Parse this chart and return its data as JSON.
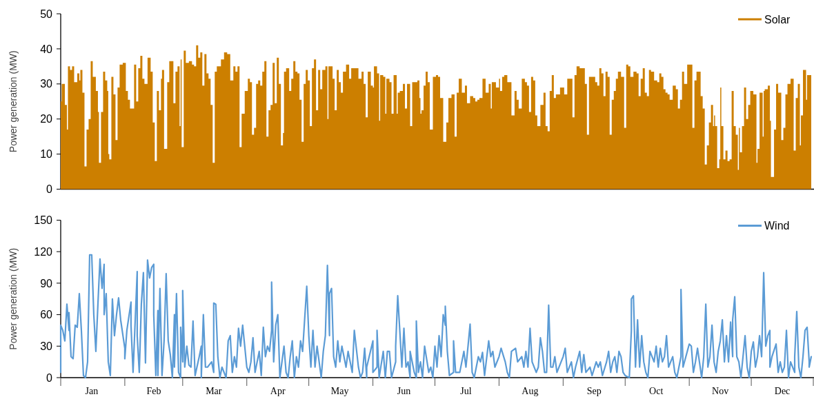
{
  "chart_data": [
    {
      "type": "area",
      "ylabel": "Power generation (MW)",
      "xlim": [
        "--01-01",
        "--12-31"
      ],
      "ylim": [
        0,
        50
      ],
      "yticks": [
        0,
        10,
        20,
        30,
        40,
        50
      ],
      "legend": "top right",
      "tick_labels": "y",
      "series": [
        {
          "name": "Solar",
          "color": "#cc7f00",
          "x": [
            "--01-01",
            "--01-01",
            "--01-02",
            "--01-04",
            "--01-04",
            "--01-05",
            "--01-06",
            "--01-07",
            "--01-08",
            "--01-10",
            "--01-10",
            "--01-11",
            "--01-12",
            "--01-13",
            "--01-14",
            "--01-15",
            "--01-16",
            "--01-17",
            "--01-19",
            "--01-19",
            "--01-20",
            "--01-21",
            "--01-22",
            "--01-23",
            "--01-24",
            "--01-24",
            "--01-25",
            "--01-26",
            "--01-27",
            "--01-28",
            "--01-29",
            "--01-30",
            "--02-01",
            "--02-02",
            "--02-03",
            "--02-04",
            "--02-05",
            "--02-06",
            "--02-07",
            "--02-08",
            "--02-09",
            "--02-10",
            "--02-11",
            "--02-13",
            "--02-13",
            "--02-14",
            "--02-15",
            "--02-16",
            "--02-17",
            "--02-18",
            "--02-19",
            "--02-19",
            "--02-21",
            "--02-22",
            "--02-23",
            "--02-24",
            "--02-25",
            "--02-26",
            "--02-27",
            "--02-28",
            "--02-28",
            "--02-28",
            "--03-01",
            "--03-02",
            "--03-03",
            "--03-05",
            "--03-06",
            "--03-07",
            "--03-08",
            "--03-09",
            "--03-10",
            "--03-11",
            "--03-12",
            "--03-13",
            "--03-14",
            "--03-15",
            "--03-16",
            "--03-17",
            "--03-18",
            "--03-19",
            "--03-20",
            "--03-22",
            "--03-23",
            "--03-25",
            "--03-26",
            "--03-27",
            "--03-28",
            "--03-29",
            "--03-30",
            "--04-01",
            "--04-02",
            "--04-03",
            "--04-04",
            "--04-05",
            "--04-06",
            "--04-07",
            "--04-08",
            "--04-09",
            "--04-10",
            "--04-11",
            "--04-12",
            "--04-13",
            "--04-14",
            "--04-15",
            "--04-16",
            "--04-17",
            "--04-18",
            "--04-19",
            "--04-19",
            "--04-21",
            "--04-22",
            "--04-23",
            "--04-24",
            "--04-25",
            "--04-26",
            "--04-27",
            "--04-28",
            "--04-29",
            "--04-30",
            "--05-01",
            "--05-02",
            "--05-03",
            "--05-04",
            "--05-05",
            "--05-06",
            "--05-07",
            "--05-08",
            "--05-10",
            "--05-10",
            "--05-11",
            "--05-12",
            "--05-13",
            "--05-14",
            "--05-15",
            "--05-16",
            "--05-17",
            "--05-18",
            "--05-20",
            "--05-21",
            "--05-22",
            "--05-24",
            "--05-26",
            "--05-27",
            "--05-28",
            "--05-29",
            "--05-30",
            "--06-01",
            "--06-01",
            "--06-02",
            "--06-04",
            "--06-04",
            "--06-05",
            "--06-07",
            "--06-07",
            "--06-08",
            "--06-10",
            "--06-10",
            "--06-12",
            "--06-13",
            "--06-13",
            "--06-15",
            "--06-16",
            "--06-17",
            "--06-18",
            "--06-19",
            "--06-19",
            "--06-21",
            "--06-22",
            "--06-23",
            "--06-24",
            "--06-24",
            "--06-25",
            "--06-26",
            "--06-27",
            "--06-28",
            "--06-29",
            "--07-01",
            "--07-02",
            "--07-03",
            "--07-04",
            "--07-06",
            "--07-07",
            "--07-08",
            "--07-10",
            "--07-11",
            "--07-12",
            "--07-13",
            "--07-15",
            "--07-16",
            "--07-17",
            "--07-19",
            "--07-20",
            "--07-21",
            "--07-22",
            "--07-23",
            "--07-25",
            "--07-26",
            "--07-28",
            "--07-28",
            "--07-29",
            "--08-01",
            "--08-01",
            "--08-02",
            "--08-03",
            "--08-04",
            "--08-06",
            "--08-08",
            "--08-09",
            "--08-10",
            "--08-11",
            "--08-13",
            "--08-14",
            "--08-15",
            "--08-16",
            "--08-17",
            "--08-18",
            "--08-19",
            "--08-20",
            "--08-22",
            "--08-23",
            "--08-24",
            "--08-25",
            "--08-26",
            "--08-27",
            "--08-28",
            "--08-29",
            "--09-01",
            "--09-02",
            "--09-04",
            "--09-05",
            "--09-06",
            "--09-07",
            "--09-08",
            "--09-10",
            "--09-11",
            "--09-12",
            "--09-13",
            "--09-14",
            "--09-16",
            "--09-17",
            "--09-18",
            "--09-19",
            "--09-20",
            "--09-21",
            "--09-22",
            "--09-23",
            "--09-24",
            "--09-25",
            "--09-26",
            "--09-27",
            "--09-28",
            "--09-30",
            "--10-01",
            "--10-02",
            "--10-03",
            "--10-04",
            "--10-06",
            "--10-07",
            "--10-08",
            "--10-09",
            "--10-10",
            "--10-11",
            "--10-12",
            "--10-13",
            "--10-14",
            "--10-16",
            "--10-17",
            "--10-18",
            "--10-19",
            "--10-20",
            "--10-21",
            "--10-22",
            "--10-23",
            "--10-25",
            "--10-26",
            "--10-27",
            "--10-28",
            "--10-29",
            "--10-30",
            "--11-01",
            "--11-02",
            "--11-03",
            "--11-04",
            "--11-05",
            "--11-06",
            "--11-07",
            "--11-08",
            "--11-09",
            "--11-10",
            "--11-11",
            "--11-12",
            "--11-13",
            "--11-13",
            "--11-14",
            "--11-15",
            "--11-16",
            "--11-16",
            "--11-17",
            "--11-18",
            "--11-19",
            "--11-20",
            "--11-21",
            "--11-22",
            "--11-23",
            "--11-24",
            "--11-25",
            "--11-25",
            "--11-26",
            "--11-27",
            "--11-28",
            "--11-29",
            "--11-30",
            "--12-01",
            "--12-03",
            "--12-04",
            "--12-04",
            "--12-06",
            "--12-07",
            "--12-07",
            "--12-08",
            "--12-10",
            "--12-10",
            "--12-11",
            "--12-13",
            "--12-13",
            "--12-15",
            "--12-16",
            "--12-17",
            "--12-18",
            "--12-19",
            "--12-21",
            "--12-22",
            "--12-23",
            "--12-24",
            "--12-25",
            "--12-25",
            "--12-27",
            "--12-28",
            "--12-28",
            "--12-30"
          ],
          "values": [
            30,
            25,
            30,
            24,
            17,
            35,
            34,
            35,
            30.5,
            33,
            31,
            34,
            27.5,
            6.5,
            17,
            20,
            36.5,
            32,
            28,
            22,
            7.5,
            22,
            33.5,
            31,
            28,
            10,
            8.5,
            32,
            27,
            14,
            29,
            35.5,
            36,
            28,
            25.5,
            23,
            23,
            35.5,
            25,
            34.5,
            38,
            31.5,
            30,
            37.5,
            37.5,
            33.5,
            19,
            8,
            28,
            22.5,
            31.5,
            34,
            11.5,
            30.5,
            36.5,
            36.5,
            24.5,
            33.5,
            35,
            18,
            35,
            37,
            12,
            39.5,
            36,
            36.5,
            35.5,
            35,
            41,
            37.5,
            39,
            29.5,
            38.5,
            33,
            31.5,
            24,
            7.5,
            33.5,
            35,
            35,
            37,
            39,
            38.5,
            31,
            35,
            33.5,
            35,
            12,
            21.5,
            28,
            31.5,
            30.5,
            15.5,
            17.5,
            30,
            31,
            29.5,
            33.5,
            36.5,
            15,
            22.5,
            24,
            36,
            24.5,
            37.5,
            30,
            12.5,
            16,
            33.5,
            34.5,
            28,
            31.5,
            36.5,
            33.5,
            33,
            25.5,
            13.5,
            30,
            34,
            31,
            18,
            34.5,
            37,
            22.5,
            34,
            28.5,
            34,
            35,
            20,
            35,
            35,
            31.5,
            22.5,
            34,
            30.5,
            27.5,
            33.5,
            35.5,
            31.5,
            34.5,
            34.5,
            31.5,
            33.5,
            30,
            20.5,
            33.5,
            29.5,
            29,
            35,
            33,
            19.5,
            32.5,
            32,
            21.5,
            31.5,
            30.5,
            21.5,
            32.5,
            21.5,
            27.5,
            28,
            30,
            23,
            30,
            30,
            18,
            30.5,
            30.5,
            31,
            26,
            21.5,
            22.5,
            29.5,
            33.5,
            30.5,
            17,
            32,
            32.5,
            32,
            26,
            13.5,
            19,
            26,
            27,
            15,
            27.5,
            31.5,
            27.5,
            29.5,
            24.5,
            26.5,
            26,
            25,
            25.5,
            26,
            31.5,
            27.5,
            30,
            23,
            30.5,
            29,
            31.5,
            28,
            32,
            32.5,
            30.5,
            21,
            28,
            25.5,
            23,
            31.5,
            30.5,
            29.5,
            22,
            32,
            31,
            21,
            18,
            24,
            27.5,
            18,
            16.5,
            28,
            32.5,
            26,
            27,
            29,
            27,
            31.5,
            31.5,
            20.5,
            32.5,
            35,
            34.5,
            34.5,
            30,
            15.5,
            32,
            32,
            30.5,
            29.5,
            34.5,
            33,
            26.5,
            33.5,
            32,
            15.5,
            25.5,
            28,
            31.5,
            33.5,
            32,
            17.5,
            35.5,
            35,
            32,
            33.5,
            33,
            26.5,
            31.5,
            34.5,
            27.5,
            26.5,
            34,
            33.5,
            31,
            30.5,
            33,
            32,
            28.5,
            27.5,
            27,
            25.5,
            29.5,
            28.5,
            23,
            25.5,
            33.5,
            30,
            35.5,
            35.5,
            17.5,
            31,
            33.5,
            33.5,
            26.5,
            23,
            7,
            12.5,
            19,
            24,
            18,
            21,
            18,
            6,
            8.5,
            29,
            18,
            8.5,
            11,
            8,
            8.5,
            28,
            18,
            15.5,
            5.5,
            17.5,
            10.5,
            18,
            29,
            20,
            24,
            28,
            27,
            7.5,
            11.5,
            27.5,
            15,
            28,
            28.5,
            29.5,
            19.5,
            3.5,
            17,
            30,
            27.5,
            14,
            17.5,
            27,
            30,
            31.5,
            11,
            26,
            30,
            12.5,
            21,
            34,
            25.5,
            32.5,
            32.5
          ]
        }
      ]
    },
    {
      "type": "line",
      "ylabel": "Power generation (MW)",
      "xlim": [
        "--01-01",
        "--12-31"
      ],
      "ylim": [
        0,
        150
      ],
      "yticks": [
        0,
        30,
        60,
        90,
        120,
        150
      ],
      "legend": "top right",
      "xticks": [
        {
          "value": "--01-01",
          "label": null
        },
        {
          "value": "--01-16",
          "label": "Jan"
        },
        {
          "value": "--02-01",
          "label": null
        },
        {
          "value": "--02-15",
          "label": "Feb"
        },
        {
          "value": "--03-01",
          "label": null
        },
        {
          "value": "--03-16",
          "label": "Mar"
        },
        {
          "value": "--04-01",
          "label": null
        },
        {
          "value": "--04-16",
          "label": "Apr"
        },
        {
          "value": "--05-01",
          "label": null
        },
        {
          "value": "--05-16",
          "label": "May"
        },
        {
          "value": "--06-01",
          "label": null
        },
        {
          "value": "--06-16",
          "label": "Jun"
        },
        {
          "value": "--07-01",
          "label": null
        },
        {
          "value": "--07-16",
          "label": "Jul"
        },
        {
          "value": "--08-01",
          "label": null
        },
        {
          "value": "--08-16",
          "label": "Aug"
        },
        {
          "value": "--09-01",
          "label": null
        },
        {
          "value": "--09-16",
          "label": "Sep"
        },
        {
          "value": "--10-01",
          "label": null
        },
        {
          "value": "--10-16",
          "label": "Oct"
        },
        {
          "value": "--11-01",
          "label": null
        },
        {
          "value": "--11-16",
          "label": "Nov"
        },
        {
          "value": "--12-01",
          "label": null
        },
        {
          "value": "--12-16",
          "label": "Dec"
        },
        {
          "value": "--12-31",
          "label": null
        }
      ],
      "series": [
        {
          "name": "Wind",
          "color": "#5b9bd5",
          "x": [
            "--01-01",
            "--01-01",
            "--01-01",
            "--01-01",
            "--01-02",
            "--01-03",
            "--01-04",
            "--01-05",
            "--01-05",
            "--01-06",
            "--01-07",
            "--01-08",
            "--01-09",
            "--01-10",
            "--01-11",
            "--01-12",
            "--01-13",
            "--01-14",
            "--01-15",
            "--01-16",
            "--01-17",
            "--01-18",
            "--01-19",
            "--01-20",
            "--01-21",
            "--01-22",
            "--01-22",
            "--01-23",
            "--01-24",
            "--01-25",
            "--01-26",
            "--01-27",
            "--01-28",
            "--01-29",
            "--01-30",
            "--02-01",
            "--02-01",
            "--02-02",
            "--02-04",
            "--02-04",
            "--02-05",
            "--02-07",
            "--02-07",
            "--02-08",
            "--02-09",
            "--02-10",
            "--02-11",
            "--02-12",
            "--02-13",
            "--02-14",
            "--02-15",
            "--02-15",
            "--02-16",
            "--02-17",
            "--02-17",
            "--02-18",
            "--02-19",
            "--02-20",
            "--02-21",
            "--02-22",
            "--02-23",
            "--02-24",
            "--02-25",
            "--02-25",
            "--02-26",
            "--02-27",
            "--02-28",
            "--02-28",
            "--03-01",
            "--03-01",
            "--03-02",
            "--03-03",
            "--03-04",
            "--03-05",
            "--03-06",
            "--03-07",
            "--03-09",
            "--03-10",
            "--03-10",
            "--03-11",
            "--03-12",
            "--03-13",
            "--03-15",
            "--03-16",
            "--03-16",
            "--03-17",
            "--03-18",
            "--03-19",
            "--03-20",
            "--03-22",
            "--03-23",
            "--03-24",
            "--03-25",
            "--03-26",
            "--03-27",
            "--03-28",
            "--03-29",
            "--03-30",
            "--04-01",
            "--04-02",
            "--04-03",
            "--04-04",
            "--04-05",
            "--04-07",
            "--04-08",
            "--04-09",
            "--04-10",
            "--04-11",
            "--04-12",
            "--04-13",
            "--04-13",
            "--04-14",
            "--04-15",
            "--04-16",
            "--04-17",
            "--04-19",
            "--04-20",
            "--04-21",
            "--04-22",
            "--04-23",
            "--04-24",
            "--04-25",
            "--04-26",
            "--04-27",
            "--04-28",
            "--04-30",
            "--05-01",
            "--05-02",
            "--05-03",
            "--05-04",
            "--05-05",
            "--05-07",
            "--05-08",
            "--05-09",
            "--05-10",
            "--05-11",
            "--05-11",
            "--05-12",
            "--05-13",
            "--05-14",
            "--05-15",
            "--05-16",
            "--05-17",
            "--05-19",
            "--05-20",
            "--05-21",
            "--05-22",
            "--05-23",
            "--05-25",
            "--05-26",
            "--05-27",
            "--05-28",
            "--05-29",
            "--05-29",
            "--06-01",
            "--06-01",
            "--06-03",
            "--06-03",
            "--06-04",
            "--06-06",
            "--06-07",
            "--06-08",
            "--06-09",
            "--06-10",
            "--06-12",
            "--06-12",
            "--06-13",
            "--06-14",
            "--06-15",
            "--06-16",
            "--06-17",
            "--06-18",
            "--06-19",
            "--06-19",
            "--06-21",
            "--06-22",
            "--06-22",
            "--06-23",
            "--06-24",
            "--06-25",
            "--06-26",
            "--06-28",
            "--06-29",
            "--06-30",
            "--07-01",
            "--07-02",
            "--07-03",
            "--07-04",
            "--07-05",
            "--07-06",
            "--07-06",
            "--07-07",
            "--07-08",
            "--07-10",
            "--07-10",
            "--07-11",
            "--07-13",
            "--07-14",
            "--07-15",
            "--07-16",
            "--07-17",
            "--07-18",
            "--07-19",
            "--07-20",
            "--07-22",
            "--07-23",
            "--07-24",
            "--07-25",
            "--07-27",
            "--07-28",
            "--07-29",
            "--07-30",
            "--08-01",
            "--08-02",
            "--08-04",
            "--08-05",
            "--08-06",
            "--08-07",
            "--08-09",
            "--08-10",
            "--08-12",
            "--08-13",
            "--08-14",
            "--08-15",
            "--08-16",
            "--08-17",
            "--08-19",
            "--08-20",
            "--08-21",
            "--08-22",
            "--08-23",
            "--08-24",
            "--08-25",
            "--08-26",
            "--08-27",
            "--08-28",
            "--08-29",
            "--09-01",
            "--09-02",
            "--09-03",
            "--09-05",
            "--09-06",
            "--09-07",
            "--09-09",
            "--09-10",
            "--09-11",
            "--09-12",
            "--09-14",
            "--09-15",
            "--09-17",
            "--09-18",
            "--09-19",
            "--09-20",
            "--09-22",
            "--09-23",
            "--09-24",
            "--09-25",
            "--09-26",
            "--09-27",
            "--09-28",
            "--09-29",
            "--09-30",
            "--10-01",
            "--10-03",
            "--10-04",
            "--10-04",
            "--10-05",
            "--10-06",
            "--10-07",
            "--10-08",
            "--10-09",
            "--10-10",
            "--10-11",
            "--10-12",
            "--10-13",
            "--10-15",
            "--10-16",
            "--10-17",
            "--10-18",
            "--10-19",
            "--10-20",
            "--10-21",
            "--10-22",
            "--10-24",
            "--10-25",
            "--10-26",
            "--10-28",
            "--10-28",
            "--10-29",
            "--11-01",
            "--11-02",
            "--11-03",
            "--11-04",
            "--11-05",
            "--11-07",
            "--11-08",
            "--11-09",
            "--11-10",
            "--11-11",
            "--11-12",
            "--11-13",
            "--11-14",
            "--11-15",
            "--11-16",
            "--11-17",
            "--11-18",
            "--11-19",
            "--11-20",
            "--11-21",
            "--11-22",
            "--11-22",
            "--11-23",
            "--11-24",
            "--11-25",
            "--11-26",
            "--11-28",
            "--11-29",
            "--11-30",
            "--12-01",
            "--12-02",
            "--12-03",
            "--12-04",
            "--12-05",
            "--12-06",
            "--12-07",
            "--12-08",
            "--12-09",
            "--12-10",
            "--12-10",
            "--12-11",
            "--12-13",
            "--12-14",
            "--12-15",
            "--12-16",
            "--12-17",
            "--12-18",
            "--12-19",
            "--12-20",
            "--12-22",
            "--12-22",
            "--12-23",
            "--12-24",
            "--12-25",
            "--12-26",
            "--12-27",
            "--12-28",
            "--12-29",
            "--12-29",
            "--12-30"
          ],
          "values": [
            30,
            10,
            5,
            50,
            45,
            35,
            70,
            45,
            62,
            20,
            18,
            50,
            48,
            80,
            45,
            2,
            0,
            15,
            117,
            117,
            60,
            25,
            70,
            113,
            85,
            108,
            60,
            80,
            15,
            2,
            75,
            40,
            60,
            76,
            55,
            28,
            18,
            45,
            72,
            50,
            5,
            101,
            40,
            5,
            70,
            100,
            14,
            112,
            95,
            105,
            108,
            60,
            2,
            64,
            2,
            85,
            2,
            35,
            99,
            35,
            22,
            0,
            60,
            10,
            80,
            5,
            0,
            48,
            15,
            83,
            10,
            30,
            12,
            10,
            54,
            2,
            20,
            30,
            0,
            60,
            10,
            10,
            15,
            5,
            71,
            70,
            20,
            0,
            10,
            0,
            35,
            40,
            5,
            20,
            10,
            47,
            30,
            50,
            10,
            5,
            15,
            38,
            5,
            25,
            2,
            48,
            20,
            30,
            25,
            45,
            91,
            15,
            50,
            60,
            0,
            30,
            5,
            0,
            20,
            35,
            0,
            20,
            10,
            35,
            25,
            87,
            40,
            10,
            45,
            10,
            30,
            0,
            25,
            40,
            107,
            40,
            80,
            85,
            20,
            10,
            35,
            15,
            30,
            10,
            25,
            15,
            5,
            45,
            10,
            0,
            5,
            28,
            0,
            10,
            35,
            5,
            10,
            45,
            0,
            25,
            0,
            25,
            25,
            0,
            15,
            30,
            78,
            45,
            10,
            47,
            10,
            15,
            0,
            25,
            5,
            0,
            54,
            5,
            15,
            0,
            30,
            5,
            10,
            0,
            30,
            10,
            40,
            20,
            60,
            50,
            68,
            25,
            2,
            5,
            35,
            5,
            5,
            15,
            25,
            10,
            30,
            51,
            5,
            0,
            20,
            15,
            24,
            2,
            35,
            20,
            25,
            10,
            20,
            28,
            15,
            5,
            0,
            25,
            28,
            15,
            20,
            10,
            25,
            10,
            47,
            15,
            5,
            10,
            38,
            25,
            5,
            5,
            69,
            10,
            10,
            20,
            5,
            20,
            28,
            5,
            15,
            0,
            10,
            25,
            5,
            22,
            5,
            10,
            2,
            15,
            10,
            15,
            2,
            15,
            25,
            5,
            15,
            20,
            5,
            25,
            20,
            5,
            2,
            0,
            45,
            75,
            78,
            10,
            55,
            10,
            40,
            15,
            5,
            0,
            25,
            15,
            30,
            10,
            28,
            15,
            20,
            40,
            10,
            20,
            5,
            0,
            20,
            84,
            10,
            32,
            30,
            5,
            15,
            28,
            0,
            20,
            70,
            10,
            20,
            50,
            15,
            5,
            25,
            35,
            55,
            15,
            40,
            15,
            53,
            20,
            55,
            77,
            20,
            15,
            0,
            40,
            10,
            0,
            25,
            34,
            10,
            20,
            40,
            20,
            100,
            30,
            40,
            45,
            10,
            20,
            32,
            5,
            15,
            5,
            10,
            45,
            0,
            15,
            5,
            20,
            63,
            10,
            0,
            20,
            45,
            48,
            15,
            10,
            20
          ]
        }
      ]
    }
  ]
}
